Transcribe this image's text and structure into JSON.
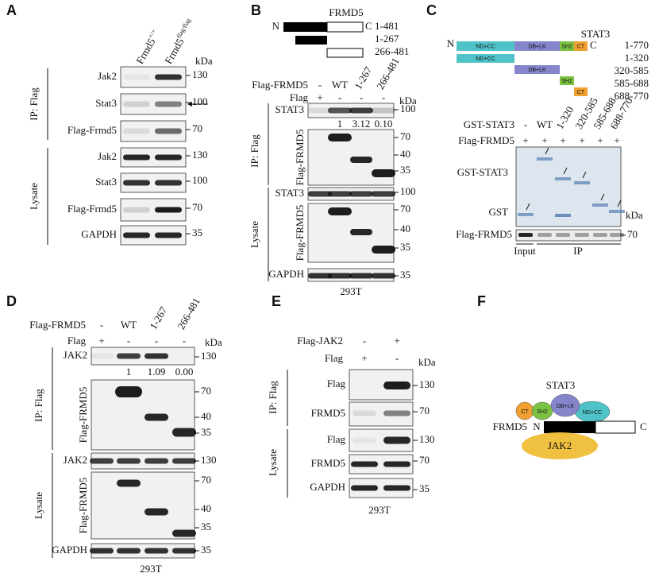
{
  "panel_a": {
    "letter": "A",
    "columns": [
      {
        "name": "Frmd5",
        "sup": "+/+"
      },
      {
        "name": "Frmd5",
        "sup": "flag/flag"
      }
    ],
    "unit": "kDa",
    "groups": [
      "IP: Flag",
      "Lysate"
    ],
    "rows": [
      {
        "label": "Jak2",
        "markers": [
          130
        ]
      },
      {
        "label": "Stat3",
        "markers": [
          100
        ]
      },
      {
        "label": "Flag-Frmd5",
        "markers": [
          70
        ]
      },
      {
        "label": "Jak2",
        "markers": [
          130
        ]
      },
      {
        "label": "Stat3",
        "markers": [
          100
        ]
      },
      {
        "label": "Flag-Frmd5",
        "markers": [
          70
        ]
      },
      {
        "label": "GAPDH",
        "markers": [
          35
        ]
      }
    ]
  },
  "panel_b": {
    "letter": "B",
    "construct": {
      "protein": "FRMD5",
      "n": "N",
      "c": "C",
      "ranges": [
        "1-481",
        "1-267",
        "266-481"
      ]
    },
    "conditions": [
      {
        "label": "Flag-FRMD5",
        "values": [
          "-",
          "WT",
          "1-267",
          "266-481"
        ]
      },
      {
        "label": "Flag",
        "values": [
          "+",
          "-",
          "-",
          "-"
        ]
      }
    ],
    "unit": "kDa",
    "groups": [
      "IP: Flag",
      "Lysate"
    ],
    "rows": [
      {
        "label": "STAT3",
        "markers": [
          100
        ]
      },
      {
        "label": "Flag-FRMD5",
        "markers": [
          70,
          40,
          35
        ]
      },
      {
        "label": "STAT3",
        "markers": [
          100
        ]
      },
      {
        "label": "Flag-FRMD5",
        "markers": [
          70,
          40,
          35
        ]
      },
      {
        "label": "GAPDH",
        "markers": [
          35
        ]
      }
    ],
    "quantification": [
      "1",
      "3.12",
      "0.10"
    ],
    "cell_line": "293T"
  },
  "panel_c": {
    "letter": "C",
    "construct": {
      "protein": "STAT3",
      "n": "N",
      "c": "C",
      "domains": [
        "ND+CC",
        "DB+LK",
        "SH2",
        "CT"
      ],
      "ranges": [
        "1-770",
        "1-320",
        "320-585",
        "585-688",
        "688-770"
      ]
    },
    "conditions": [
      {
        "label": "GST-STAT3",
        "values": [
          "-",
          "WT",
          "1-320",
          "320-585",
          "585-688",
          "688-770"
        ]
      },
      {
        "label": "Flag-FRMD5",
        "values": [
          "+",
          "+",
          "+",
          "+",
          "+",
          "+"
        ]
      }
    ],
    "gel_labels": [
      "GST-STAT3",
      "GST"
    ],
    "unit": "kDa",
    "blot": {
      "label": "Flag-FRMD5",
      "markers": [
        70
      ]
    },
    "sections": [
      "Input",
      "IP"
    ]
  },
  "panel_d": {
    "letter": "D",
    "conditions": [
      {
        "label": "Flag-FRMD5",
        "values": [
          "-",
          "WT",
          "1-267",
          "266-481"
        ]
      },
      {
        "label": "Flag",
        "values": [
          "+",
          "-",
          "-",
          "-"
        ]
      }
    ],
    "unit": "kDa",
    "groups": [
      "IP: Flag",
      "Lysate"
    ],
    "rows": [
      {
        "label": "JAK2",
        "markers": [
          130
        ]
      },
      {
        "label": "Flag-FRMD5",
        "markers": [
          70,
          40,
          35
        ]
      },
      {
        "label": "JAK2",
        "markers": [
          130
        ]
      },
      {
        "label": "Flag-FRMD5",
        "markers": [
          70,
          40,
          35
        ]
      },
      {
        "label": "GAPDH",
        "markers": [
          35
        ]
      }
    ],
    "quantification": [
      "1",
      "1.09",
      "0.00"
    ],
    "cell_line": "293T"
  },
  "panel_e": {
    "letter": "E",
    "conditions": [
      {
        "label": "Flag-JAK2",
        "values": [
          "-",
          "+"
        ]
      },
      {
        "label": "Flag",
        "values": [
          "+",
          "-"
        ]
      }
    ],
    "unit": "kDa",
    "groups": [
      "IP: Flag",
      "Lysate"
    ],
    "rows": [
      {
        "label": "Flag",
        "markers": [
          130
        ]
      },
      {
        "label": "FRMD5",
        "markers": [
          70
        ]
      },
      {
        "label": "Flag",
        "markers": [
          130
        ]
      },
      {
        "label": "FRMD5",
        "markers": [
          70
        ]
      },
      {
        "label": "GAPDH",
        "markers": [
          35
        ]
      }
    ],
    "cell_line": "293T"
  },
  "panel_f": {
    "letter": "F",
    "complex": "STAT3",
    "domains": [
      "CT",
      "SH2",
      "DB+LK",
      "ND+CC"
    ],
    "protein": "FRMD5",
    "n": "N",
    "c": "C",
    "partner": "JAK2"
  }
}
